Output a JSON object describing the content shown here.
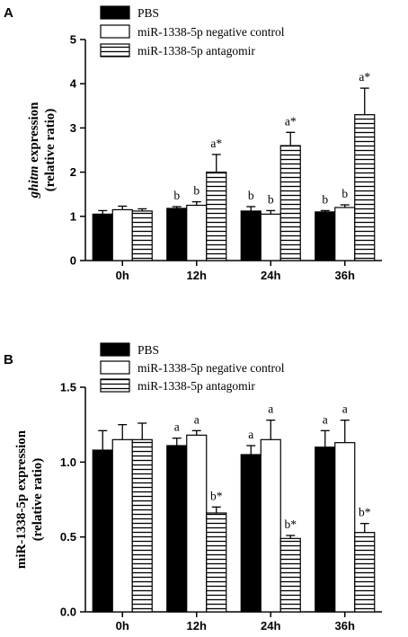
{
  "chart_data": [
    {
      "type": "bar",
      "panel": "A",
      "categories": [
        "0h",
        "12h",
        "24h",
        "36h"
      ],
      "series": [
        {
          "name": "PBS",
          "fill": "solid",
          "values": [
            1.05,
            1.18,
            1.12,
            1.1
          ],
          "errors": [
            0.08,
            0.04,
            0.1,
            0.03
          ],
          "annotations": [
            "",
            "b",
            "b",
            "b"
          ]
        },
        {
          "name": "miR-1338-5p negative control",
          "fill": "white",
          "values": [
            1.15,
            1.25,
            1.05,
            1.2
          ],
          "errors": [
            0.08,
            0.08,
            0.08,
            0.06
          ],
          "annotations": [
            "",
            "b",
            "b",
            "b"
          ]
        },
        {
          "name": "miR-1338-5p antagomir",
          "fill": "hatched",
          "values": [
            1.12,
            2.0,
            2.6,
            3.3
          ],
          "errors": [
            0.05,
            0.4,
            0.3,
            0.6
          ],
          "annotations": [
            "",
            "a*",
            "a*",
            "a*"
          ]
        }
      ],
      "ylabel_italic": "ghitm",
      "ylabel_rest": " expression",
      "ylabel_line2": "(relative ratio)",
      "ylim": [
        0,
        5
      ],
      "yticks": [
        "0",
        "1",
        "2",
        "3",
        "4",
        "5"
      ],
      "legend_position": "top"
    },
    {
      "type": "bar",
      "panel": "B",
      "categories": [
        "0h",
        "12h",
        "24h",
        "36h"
      ],
      "series": [
        {
          "name": "PBS",
          "fill": "solid",
          "values": [
            1.08,
            1.11,
            1.05,
            1.1
          ],
          "errors": [
            0.13,
            0.05,
            0.06,
            0.11
          ],
          "annotations": [
            "",
            "a",
            "a",
            "a"
          ]
        },
        {
          "name": "miR-1338-5p negative control",
          "fill": "white",
          "values": [
            1.15,
            1.18,
            1.15,
            1.13
          ],
          "errors": [
            0.1,
            0.03,
            0.13,
            0.15
          ],
          "annotations": [
            "",
            "a",
            "a",
            "a"
          ]
        },
        {
          "name": "miR-1338-5p antagomir",
          "fill": "hatched",
          "values": [
            1.15,
            0.66,
            0.49,
            0.53
          ],
          "errors": [
            0.11,
            0.04,
            0.02,
            0.06
          ],
          "annotations": [
            "",
            "b*",
            "b*",
            "b*"
          ]
        }
      ],
      "ylabel_italic": "",
      "ylabel_rest": "miR-1338-5p expression",
      "ylabel_line2": "(relative ratio)",
      "ylim": [
        0,
        1.5
      ],
      "yticks": [
        "0.0",
        "0.5",
        "1.0",
        "1.5"
      ],
      "legend_position": "top"
    }
  ]
}
